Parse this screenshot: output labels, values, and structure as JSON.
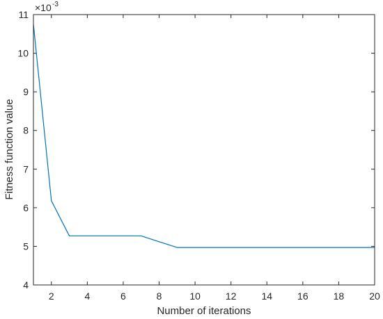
{
  "chart_data": {
    "type": "line",
    "title": "",
    "xlabel": "Number of iterations",
    "ylabel": "Fitness function value",
    "y_multiplier_label": "×10",
    "y_multiplier_exponent": "-3",
    "xlim": [
      1,
      20
    ],
    "ylim": [
      4,
      11
    ],
    "xticks": [
      2,
      4,
      6,
      8,
      10,
      12,
      14,
      16,
      18,
      20
    ],
    "yticks": [
      4,
      5,
      6,
      7,
      8,
      9,
      10,
      11
    ],
    "grid": false,
    "line_color": "#0072BD",
    "series": [
      {
        "x": [
          1,
          2,
          3,
          4,
          5,
          6,
          7,
          8,
          9,
          10,
          11,
          12,
          13,
          14,
          15,
          16,
          17,
          18,
          19,
          20
        ],
        "values": [
          10.75,
          6.18,
          5.27,
          5.27,
          5.27,
          5.27,
          5.27,
          5.12,
          4.97,
          4.97,
          4.97,
          4.97,
          4.97,
          4.97,
          4.97,
          4.97,
          4.97,
          4.97,
          4.97,
          4.97
        ]
      }
    ]
  }
}
